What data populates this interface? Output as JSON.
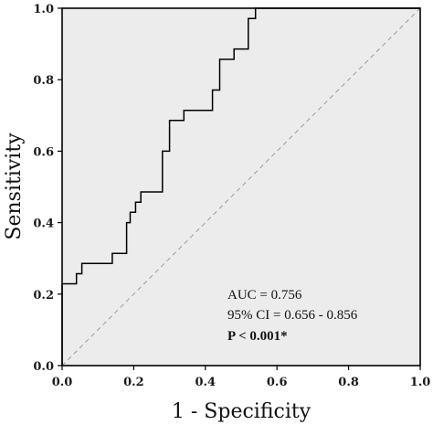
{
  "chart_data": {
    "type": "line",
    "title": "",
    "xlabel": "1 - Specificity",
    "ylabel": "Sensitivity",
    "xlim": [
      0.0,
      1.0
    ],
    "ylim": [
      0.0,
      1.0
    ],
    "x_ticks": [
      "0.0",
      "0.2",
      "0.4",
      "0.6",
      "0.8",
      "1.0"
    ],
    "y_ticks": [
      "0.0",
      "0.2",
      "0.4",
      "0.6",
      "0.8",
      "1.0"
    ],
    "x_tick_values": [
      0.0,
      0.2,
      0.4,
      0.6,
      0.8,
      1.0
    ],
    "y_tick_values": [
      0.0,
      0.2,
      0.4,
      0.6,
      0.8,
      1.0
    ],
    "grid": false,
    "series": [
      {
        "kind": "step",
        "x": [
          0.0,
          0.0,
          0.04,
          0.04,
          0.055,
          0.055,
          0.07,
          0.07,
          0.14,
          0.14,
          0.18,
          0.18,
          0.19,
          0.19,
          0.205,
          0.205,
          0.22,
          0.22,
          0.235,
          0.235,
          0.28,
          0.28,
          0.3,
          0.3,
          0.34,
          0.34,
          0.42,
          0.42,
          0.44,
          0.44,
          0.48,
          0.48,
          0.52,
          0.52,
          0.54,
          0.54,
          1.0
        ],
        "y": [
          0.0,
          0.229,
          0.229,
          0.257,
          0.257,
          0.286,
          0.286,
          0.286,
          0.286,
          0.314,
          0.314,
          0.4,
          0.4,
          0.429,
          0.429,
          0.457,
          0.457,
          0.486,
          0.486,
          0.486,
          0.486,
          0.6,
          0.6,
          0.686,
          0.686,
          0.714,
          0.714,
          0.771,
          0.771,
          0.857,
          0.857,
          0.886,
          0.886,
          0.971,
          0.971,
          1.0,
          1.0
        ],
        "color": "#000000"
      },
      {
        "kind": "reference",
        "x": [
          0.0,
          1.0
        ],
        "y": [
          0.0,
          1.0
        ],
        "color": "#9a9a9a",
        "dashed": true
      }
    ],
    "annotations": {
      "auc": "AUC = 0.756",
      "ci": "95% CI = 0.656 - 0.856",
      "p": "P < 0.001*"
    },
    "colors": {
      "plot_background": "#ececec",
      "frame": "#000000"
    }
  }
}
